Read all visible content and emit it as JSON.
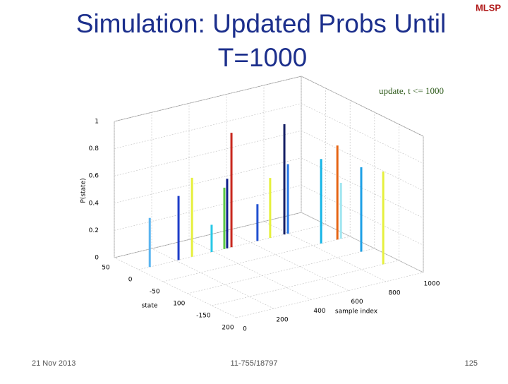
{
  "slide": {
    "title_lines": [
      "Simulation: Updated Probs Until",
      "T=1000"
    ],
    "logo": "MLSP",
    "date": "21 Nov 2013",
    "course": "11-755/18797",
    "page": "125"
  },
  "chart_data": {
    "type": "waterfall3d",
    "title": "update, t <= 1000",
    "xlabel": "sample index",
    "ylabel": "state",
    "zlabel": "P(state)",
    "xlim": [
      0,
      1000
    ],
    "xticks": [
      0,
      200,
      400,
      600,
      800,
      1000
    ],
    "ylim": [
      -200,
      50
    ],
    "yticks": [
      50,
      0,
      -50,
      {
        "value": -100,
        "label": "100"
      },
      -150,
      {
        "value": -200,
        "label": "200"
      }
    ],
    "zlim": [
      0,
      1
    ],
    "zticks": [
      0,
      0.2,
      0.4,
      0.6,
      0.8,
      1
    ],
    "grid": true,
    "peaks": {
      "x": [
        59,
        213,
        285,
        390,
        458,
        473,
        496,
        635,
        703,
        779,
        798,
        845,
        929,
        932,
        951,
        916
      ],
      "y": [
        0,
        0,
        0,
        0,
        0,
        0,
        0,
        0,
        0,
        0,
        0,
        -50,
        -100,
        -50,
        -50,
        -150
      ],
      "z": [
        0.36,
        0.47,
        0.58,
        0.2,
        0.45,
        0.51,
        0.84,
        0.27,
        0.44,
        0.81,
        0.51,
        0.62,
        0.62,
        0.69,
        0.41,
        0.68
      ],
      "colors": [
        "#5ab4f0",
        "#1c3cc8",
        "#e6f03c",
        "#28c8e6",
        "#5ac846",
        "#10208c",
        "#c8281e",
        "#2050d0",
        "#e6f03c",
        "#141e64",
        "#2878e6",
        "#14b4e6",
        "#1ea0e6",
        "#e66414",
        "#a0e6f0",
        "#e6f03c"
      ]
    }
  }
}
